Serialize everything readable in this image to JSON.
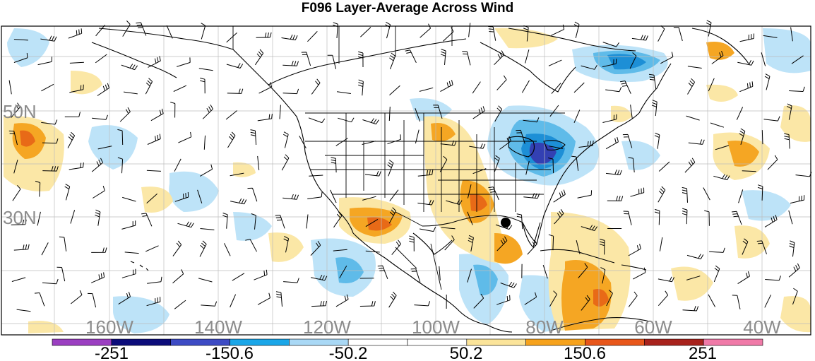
{
  "title": "F096 Layer-Average Across Wind",
  "lat_labels": [
    "50N",
    "30N"
  ],
  "lon_labels": [
    "160W",
    "140W",
    "120W",
    "100W",
    "80W",
    "60W",
    "40W"
  ],
  "colorbar": {
    "labels": [
      "-251",
      "-150.6",
      "-50.2",
      "50.2",
      "150.6",
      "251"
    ],
    "colors": [
      "#9b3fc1",
      "#0b0b7a",
      "#3d4bc4",
      "#1aa6e8",
      "#a9d8f5",
      "#ffffff",
      "#ffffff",
      "#fbe49a",
      "#f6a21c",
      "#e8561a",
      "#a8221c",
      "#f07aa8"
    ]
  },
  "marker": "black-dot",
  "palette": {
    "light_blue": "#bde3f8",
    "mid_blue": "#5fbbe9",
    "blue": "#1d8fd6",
    "dark_blue": "#3340b3",
    "light_orange": "#fbe7a6",
    "orange": "#f5a623",
    "dark_orange": "#e86a17"
  }
}
